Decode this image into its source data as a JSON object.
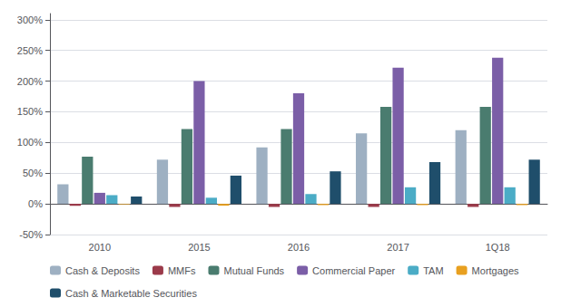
{
  "chart_data": {
    "type": "bar",
    "categories": [
      "2010",
      "2015",
      "2016",
      "2017",
      "1Q18"
    ],
    "series": [
      {
        "name": "Cash & Deposits",
        "color": "#9eb0c2",
        "values": [
          32,
          72,
          92,
          115,
          120
        ]
      },
      {
        "name": "MMFs",
        "color": "#9b3a4a",
        "values": [
          -3,
          -5,
          -5,
          -5,
          -5
        ]
      },
      {
        "name": "Mutual Funds",
        "color": "#4a7c6f",
        "values": [
          77,
          122,
          122,
          158,
          158
        ]
      },
      {
        "name": "Commercial Paper",
        "color": "#7b5ea7",
        "values": [
          18,
          200,
          180,
          222,
          238
        ]
      },
      {
        "name": "TAM",
        "color": "#4bacc6",
        "values": [
          14,
          10,
          16,
          27,
          27
        ]
      },
      {
        "name": "Mortgages",
        "color": "#e8a020",
        "values": [
          -1,
          -3,
          -2,
          -2,
          -2
        ]
      },
      {
        "name": "Cash & Marketable Securities",
        "color": "#1f4e6b",
        "values": [
          12,
          46,
          53,
          68,
          72
        ]
      }
    ],
    "ylim": [
      -50,
      310
    ],
    "yticks": [
      {
        "value": -50,
        "label": "-50%"
      },
      {
        "value": 0,
        "label": "0%"
      },
      {
        "value": 50,
        "label": "50%"
      },
      {
        "value": 100,
        "label": "100%"
      },
      {
        "value": 150,
        "label": "150%"
      },
      {
        "value": 200,
        "label": "200%"
      },
      {
        "value": 250,
        "label": "250%"
      },
      {
        "value": 300,
        "label": "300%"
      }
    ],
    "grid": true,
    "legend": "lower left"
  }
}
